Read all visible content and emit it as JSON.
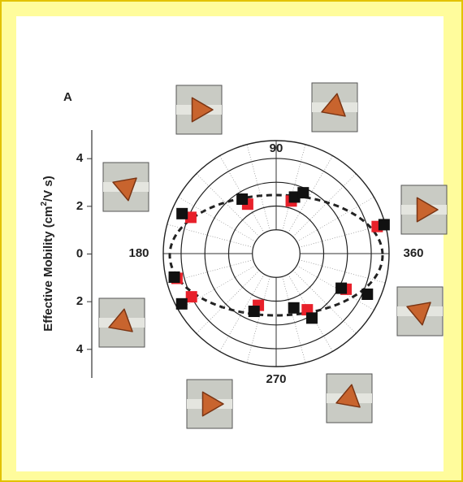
{
  "chart_data": {
    "type": "polar-scatter",
    "panel_label": "A",
    "y_label": {
      "before": "Effective Mobility (cm",
      "sup": "2",
      "after": "/V s)"
    },
    "ylim": [
      -5.2,
      5.2
    ],
    "yticks": [
      4,
      2,
      0,
      {
        "value": -2,
        "label": "2"
      },
      {
        "value": -4,
        "label": "4"
      }
    ],
    "rlim": [
      0,
      4.75
    ],
    "rings": [
      1,
      2,
      3,
      4
    ],
    "angle_labels": [
      {
        "value": 90,
        "label": "90"
      },
      {
        "value": 180,
        "label": "180"
      },
      {
        "value": 270,
        "label": "270"
      },
      {
        "value": 0,
        "label": "360"
      }
    ],
    "series": [
      {
        "color": "#e8202a",
        "theta": [
          157,
          120,
          74,
          15,
          194,
          207,
          251,
          299,
          333
        ],
        "values": [
          3.9,
          2.4,
          2.3,
          4.4,
          4.3,
          4.0,
          2.3,
          2.7,
          3.3
        ]
      },
      {
        "color": "#111111",
        "theta": [
          157,
          122,
          72,
          66,
          15,
          193,
          208,
          249,
          288,
          299,
          332,
          336
        ],
        "values": [
          4.3,
          2.7,
          2.5,
          2.8,
          4.7,
          4.4,
          4.5,
          2.6,
          2.4,
          3.1,
          3.1,
          4.2
        ]
      }
    ]
  }
}
